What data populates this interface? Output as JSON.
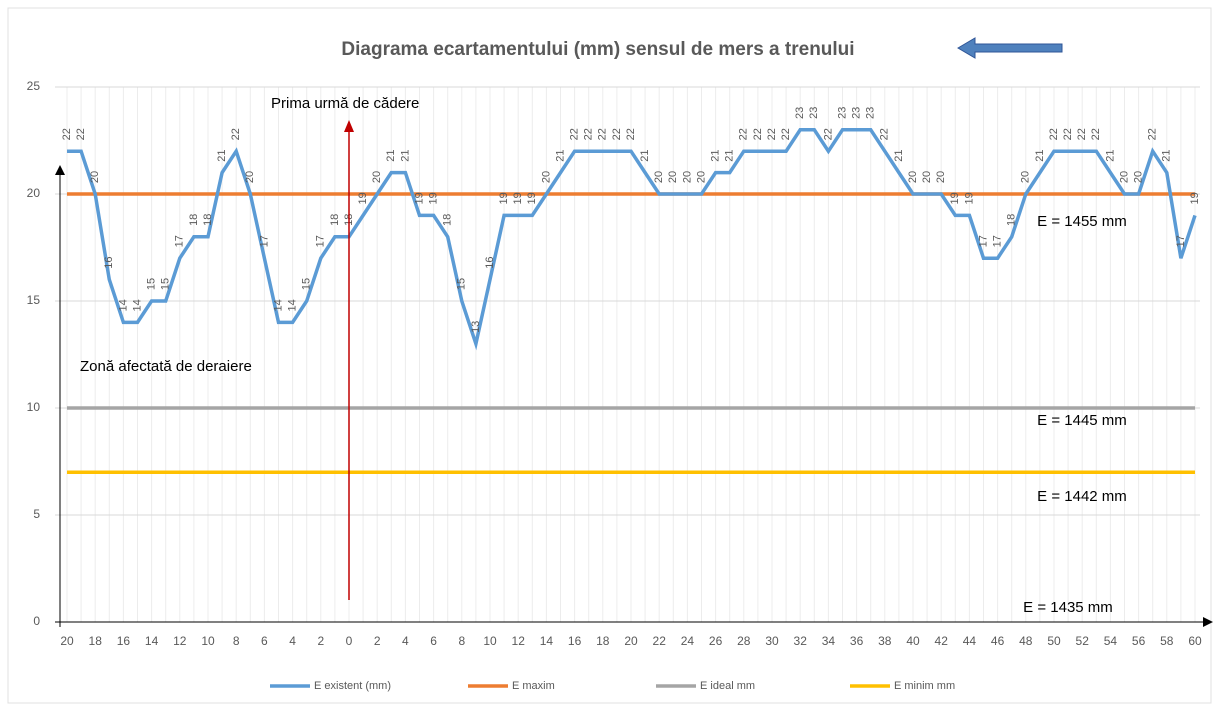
{
  "chart_data": {
    "type": "line",
    "title": "Diagrama ecartamentului (mm)  sensul de mers a trenului",
    "categories": [
      "20",
      null,
      "18",
      null,
      "16",
      null,
      "14",
      null,
      "12",
      null,
      "10",
      null,
      "8",
      null,
      "6",
      null,
      "4",
      null,
      "2",
      null,
      "0",
      null,
      "2",
      null,
      "4",
      null,
      "6",
      null,
      "8",
      null,
      "10",
      null,
      "12",
      null,
      "14",
      null,
      "16",
      null,
      "18",
      null,
      "20",
      null,
      "22",
      null,
      "24",
      null,
      "26",
      null,
      "28",
      null,
      "30",
      null,
      "32",
      null,
      "34",
      null,
      "36",
      null,
      "38",
      null,
      "40",
      null,
      "42",
      null,
      "44",
      null,
      "46",
      null,
      "48",
      null,
      "50",
      null,
      "52",
      null,
      "54",
      null,
      "56",
      null,
      "58",
      null,
      "60"
    ],
    "series": [
      {
        "name": "E existent (mm)",
        "color": "#5b9bd5",
        "labels": true,
        "values": [
          22,
          22,
          20,
          16,
          14,
          14,
          15,
          15,
          17,
          18,
          18,
          21,
          22,
          20,
          17,
          14,
          14,
          15,
          17,
          18,
          18,
          19,
          20,
          21,
          21,
          19,
          19,
          18,
          15,
          13,
          16,
          19,
          19,
          19,
          20,
          21,
          22,
          22,
          22,
          22,
          22,
          21,
          20,
          20,
          20,
          20,
          21,
          21,
          22,
          22,
          22,
          22,
          23,
          23,
          22,
          23,
          23,
          23,
          22,
          21,
          20,
          20,
          20,
          19,
          19,
          17,
          17,
          18,
          20,
          21,
          22,
          22,
          22,
          22,
          21,
          20,
          20,
          22,
          21,
          17,
          19
        ]
      },
      {
        "name": "E maxim",
        "color": "#ed7d31",
        "values": [
          20,
          20,
          20,
          20,
          20,
          20,
          20,
          20,
          20,
          20,
          20,
          20,
          20,
          20,
          20,
          20,
          20,
          20,
          20,
          20,
          20,
          20,
          20,
          20,
          20,
          20,
          20,
          20,
          20,
          20,
          20,
          20,
          20,
          20,
          20,
          20,
          20,
          20,
          20,
          20,
          20,
          20,
          20,
          20,
          20,
          20,
          20,
          20,
          20,
          20,
          20,
          20,
          20,
          20,
          20,
          20,
          20,
          20,
          20,
          20,
          20,
          20,
          20,
          20,
          20,
          20,
          20,
          20,
          20,
          20,
          20,
          20,
          20,
          20,
          20,
          20,
          20,
          20,
          20,
          20,
          20
        ]
      },
      {
        "name": "E ideal mm",
        "color": "#a5a5a5",
        "values": [
          10,
          10,
          10,
          10,
          10,
          10,
          10,
          10,
          10,
          10,
          10,
          10,
          10,
          10,
          10,
          10,
          10,
          10,
          10,
          10,
          10,
          10,
          10,
          10,
          10,
          10,
          10,
          10,
          10,
          10,
          10,
          10,
          10,
          10,
          10,
          10,
          10,
          10,
          10,
          10,
          10,
          10,
          10,
          10,
          10,
          10,
          10,
          10,
          10,
          10,
          10,
          10,
          10,
          10,
          10,
          10,
          10,
          10,
          10,
          10,
          10,
          10,
          10,
          10,
          10,
          10,
          10,
          10,
          10,
          10,
          10,
          10,
          10,
          10,
          10,
          10,
          10,
          10,
          10,
          10,
          10
        ]
      },
      {
        "name": "E minim mm",
        "color": "#ffc000",
        "values": [
          7,
          7,
          7,
          7,
          7,
          7,
          7,
          7,
          7,
          7,
          7,
          7,
          7,
          7,
          7,
          7,
          7,
          7,
          7,
          7,
          7,
          7,
          7,
          7,
          7,
          7,
          7,
          7,
          7,
          7,
          7,
          7,
          7,
          7,
          7,
          7,
          7,
          7,
          7,
          7,
          7,
          7,
          7,
          7,
          7,
          7,
          7,
          7,
          7,
          7,
          7,
          7,
          7,
          7,
          7,
          7,
          7,
          7,
          7,
          7,
          7,
          7,
          7,
          7,
          7,
          7,
          7,
          7,
          7,
          7,
          7,
          7,
          7,
          7,
          7,
          7,
          7,
          7,
          7,
          7,
          7
        ]
      }
    ],
    "ylim": [
      0,
      25
    ],
    "yticks": [
      0,
      5,
      10,
      15,
      20,
      25
    ],
    "grid": true,
    "legend": "bottom",
    "annotations": [
      "Prima urmă de cădere",
      "Zonă afectată de deraiere",
      "E = 1455 mm",
      "E = 1445 mm",
      "E = 1442 mm",
      "E = 1435 mm"
    ]
  }
}
